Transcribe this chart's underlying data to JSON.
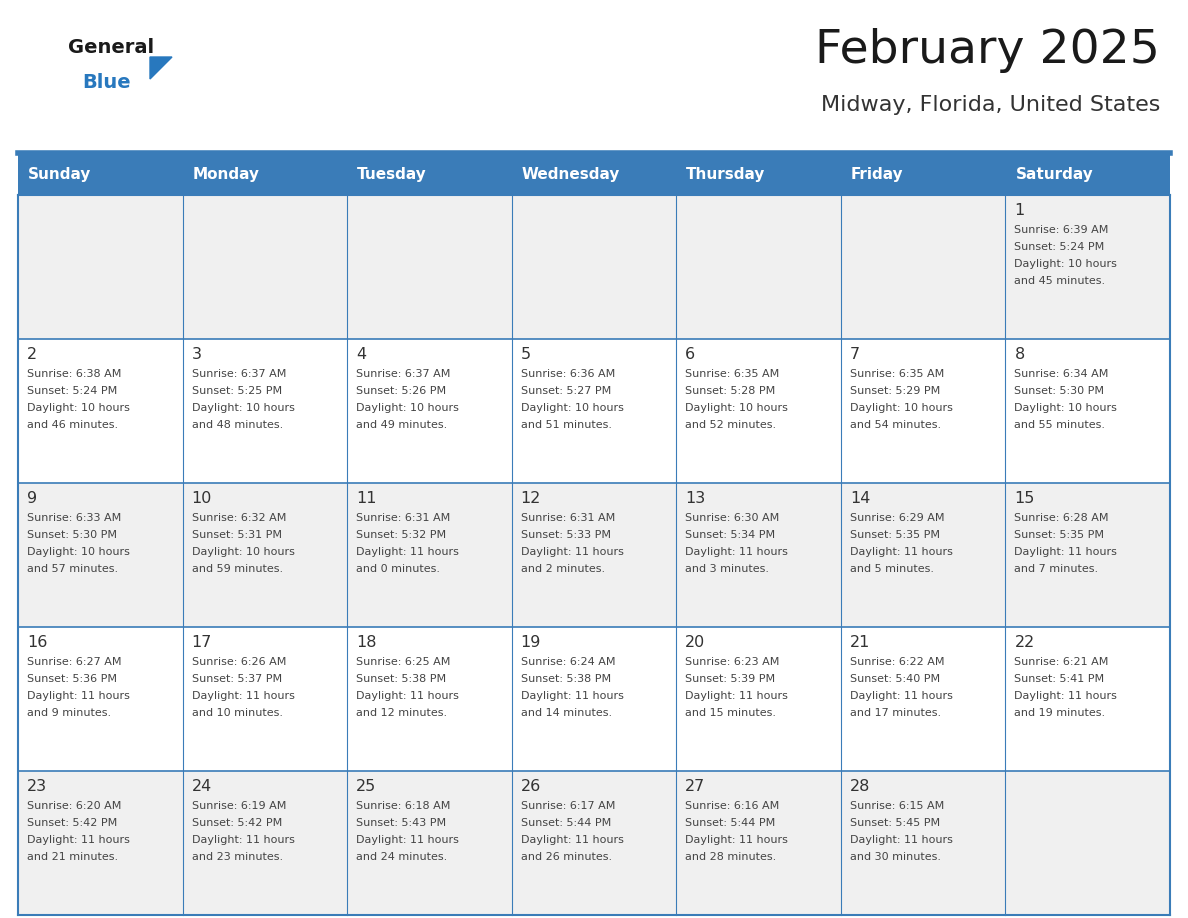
{
  "title": "February 2025",
  "subtitle": "Midway, Florida, United States",
  "header_bg": "#3A7CB8",
  "header_text": "#FFFFFF",
  "row_bg_odd": "#F0F0F0",
  "row_bg_even": "#FFFFFF",
  "border_color": "#3A7CB8",
  "day_names": [
    "Sunday",
    "Monday",
    "Tuesday",
    "Wednesday",
    "Thursday",
    "Friday",
    "Saturday"
  ],
  "day_num_color": "#333333",
  "text_color": "#444444",
  "weeks": [
    [
      {
        "day": null,
        "lines": []
      },
      {
        "day": null,
        "lines": []
      },
      {
        "day": null,
        "lines": []
      },
      {
        "day": null,
        "lines": []
      },
      {
        "day": null,
        "lines": []
      },
      {
        "day": null,
        "lines": []
      },
      {
        "day": 1,
        "lines": [
          "Sunrise: 6:39 AM",
          "Sunset: 5:24 PM",
          "Daylight: 10 hours",
          "and 45 minutes."
        ]
      }
    ],
    [
      {
        "day": 2,
        "lines": [
          "Sunrise: 6:38 AM",
          "Sunset: 5:24 PM",
          "Daylight: 10 hours",
          "and 46 minutes."
        ]
      },
      {
        "day": 3,
        "lines": [
          "Sunrise: 6:37 AM",
          "Sunset: 5:25 PM",
          "Daylight: 10 hours",
          "and 48 minutes."
        ]
      },
      {
        "day": 4,
        "lines": [
          "Sunrise: 6:37 AM",
          "Sunset: 5:26 PM",
          "Daylight: 10 hours",
          "and 49 minutes."
        ]
      },
      {
        "day": 5,
        "lines": [
          "Sunrise: 6:36 AM",
          "Sunset: 5:27 PM",
          "Daylight: 10 hours",
          "and 51 minutes."
        ]
      },
      {
        "day": 6,
        "lines": [
          "Sunrise: 6:35 AM",
          "Sunset: 5:28 PM",
          "Daylight: 10 hours",
          "and 52 minutes."
        ]
      },
      {
        "day": 7,
        "lines": [
          "Sunrise: 6:35 AM",
          "Sunset: 5:29 PM",
          "Daylight: 10 hours",
          "and 54 minutes."
        ]
      },
      {
        "day": 8,
        "lines": [
          "Sunrise: 6:34 AM",
          "Sunset: 5:30 PM",
          "Daylight: 10 hours",
          "and 55 minutes."
        ]
      }
    ],
    [
      {
        "day": 9,
        "lines": [
          "Sunrise: 6:33 AM",
          "Sunset: 5:30 PM",
          "Daylight: 10 hours",
          "and 57 minutes."
        ]
      },
      {
        "day": 10,
        "lines": [
          "Sunrise: 6:32 AM",
          "Sunset: 5:31 PM",
          "Daylight: 10 hours",
          "and 59 minutes."
        ]
      },
      {
        "day": 11,
        "lines": [
          "Sunrise: 6:31 AM",
          "Sunset: 5:32 PM",
          "Daylight: 11 hours",
          "and 0 minutes."
        ]
      },
      {
        "day": 12,
        "lines": [
          "Sunrise: 6:31 AM",
          "Sunset: 5:33 PM",
          "Daylight: 11 hours",
          "and 2 minutes."
        ]
      },
      {
        "day": 13,
        "lines": [
          "Sunrise: 6:30 AM",
          "Sunset: 5:34 PM",
          "Daylight: 11 hours",
          "and 3 minutes."
        ]
      },
      {
        "day": 14,
        "lines": [
          "Sunrise: 6:29 AM",
          "Sunset: 5:35 PM",
          "Daylight: 11 hours",
          "and 5 minutes."
        ]
      },
      {
        "day": 15,
        "lines": [
          "Sunrise: 6:28 AM",
          "Sunset: 5:35 PM",
          "Daylight: 11 hours",
          "and 7 minutes."
        ]
      }
    ],
    [
      {
        "day": 16,
        "lines": [
          "Sunrise: 6:27 AM",
          "Sunset: 5:36 PM",
          "Daylight: 11 hours",
          "and 9 minutes."
        ]
      },
      {
        "day": 17,
        "lines": [
          "Sunrise: 6:26 AM",
          "Sunset: 5:37 PM",
          "Daylight: 11 hours",
          "and 10 minutes."
        ]
      },
      {
        "day": 18,
        "lines": [
          "Sunrise: 6:25 AM",
          "Sunset: 5:38 PM",
          "Daylight: 11 hours",
          "and 12 minutes."
        ]
      },
      {
        "day": 19,
        "lines": [
          "Sunrise: 6:24 AM",
          "Sunset: 5:38 PM",
          "Daylight: 11 hours",
          "and 14 minutes."
        ]
      },
      {
        "day": 20,
        "lines": [
          "Sunrise: 6:23 AM",
          "Sunset: 5:39 PM",
          "Daylight: 11 hours",
          "and 15 minutes."
        ]
      },
      {
        "day": 21,
        "lines": [
          "Sunrise: 6:22 AM",
          "Sunset: 5:40 PM",
          "Daylight: 11 hours",
          "and 17 minutes."
        ]
      },
      {
        "day": 22,
        "lines": [
          "Sunrise: 6:21 AM",
          "Sunset: 5:41 PM",
          "Daylight: 11 hours",
          "and 19 minutes."
        ]
      }
    ],
    [
      {
        "day": 23,
        "lines": [
          "Sunrise: 6:20 AM",
          "Sunset: 5:42 PM",
          "Daylight: 11 hours",
          "and 21 minutes."
        ]
      },
      {
        "day": 24,
        "lines": [
          "Sunrise: 6:19 AM",
          "Sunset: 5:42 PM",
          "Daylight: 11 hours",
          "and 23 minutes."
        ]
      },
      {
        "day": 25,
        "lines": [
          "Sunrise: 6:18 AM",
          "Sunset: 5:43 PM",
          "Daylight: 11 hours",
          "and 24 minutes."
        ]
      },
      {
        "day": 26,
        "lines": [
          "Sunrise: 6:17 AM",
          "Sunset: 5:44 PM",
          "Daylight: 11 hours",
          "and 26 minutes."
        ]
      },
      {
        "day": 27,
        "lines": [
          "Sunrise: 6:16 AM",
          "Sunset: 5:44 PM",
          "Daylight: 11 hours",
          "and 28 minutes."
        ]
      },
      {
        "day": 28,
        "lines": [
          "Sunrise: 6:15 AM",
          "Sunset: 5:45 PM",
          "Daylight: 11 hours",
          "and 30 minutes."
        ]
      },
      {
        "day": null,
        "lines": []
      }
    ]
  ],
  "logo_color_general": "#1a1a1a",
  "logo_color_blue": "#2878BE",
  "logo_color_triangle": "#2878BE"
}
